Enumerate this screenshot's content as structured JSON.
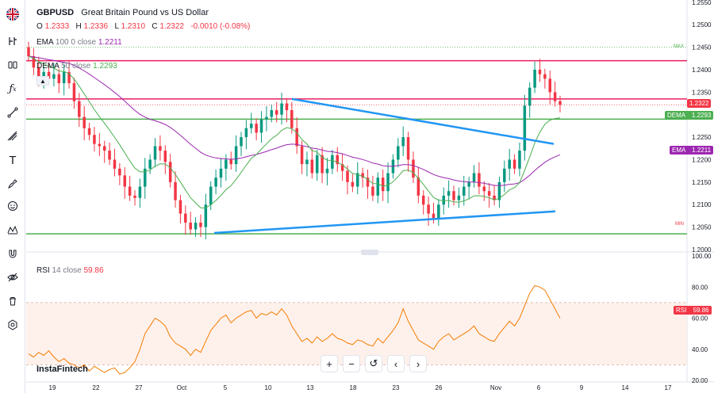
{
  "symbol": {
    "ticker": "GBPUSD",
    "name": "Great Britain Pound vs US Dollar",
    "o_label": "O",
    "o": "1.2333",
    "h_label": "H",
    "h": "1.2336",
    "l_label": "L",
    "l": "1.2310",
    "c_label": "C",
    "c": "1.2322",
    "change": "-0.0010 (-0.08%)"
  },
  "indicators": {
    "ema": {
      "name": "EMA",
      "params": "100 0 close",
      "value": "1.2211",
      "color": "#9c27b0"
    },
    "dema": {
      "name": "DEMA",
      "params": "50 close",
      "value": "1.2293",
      "color": "#4caf50"
    },
    "rsi": {
      "name": "RSI",
      "params": "14 close",
      "value": "59.86",
      "color": "#f57c00"
    }
  },
  "tags": {
    "max": "MAX",
    "min": "MIN",
    "price": "1.2322",
    "dema_label": "DEMA",
    "dema_value": "1.2293",
    "ema_label": "EMA",
    "ema_value": "1.2211",
    "rsi_label": "RSI",
    "rsi_value": "59.86"
  },
  "colors": {
    "up": "#089981",
    "down": "#f23645",
    "trend": "#2196f3",
    "resistance": "#e91e63",
    "support": "#4caf50",
    "rsi": "#f57c00"
  },
  "watermark": "InstaFintech",
  "toolbar_icons": [
    "uk-flag-icon",
    "crosshair-icon",
    "candles-icon",
    "fx-icon",
    "trendline-icon",
    "fib-icon",
    "text-icon",
    "brush-icon",
    "emoji-icon",
    "pattern-icon",
    "magnet-icon",
    "eye-off-icon",
    "trash-icon",
    "settings-icon"
  ],
  "nav_buttons": [
    "+",
    "−",
    "↺",
    "‹",
    "›"
  ],
  "chart_data": [
    {
      "type": "candlestick",
      "title": "GBPUSD",
      "ylim": [
        1.2,
        1.2555
      ],
      "y_ticks": [
        "1.2550",
        "1.2500",
        "1.2450",
        "1.2400",
        "1.2350",
        "1.2300",
        "1.2250",
        "1.2200",
        "1.2150",
        "1.2100",
        "1.2050",
        "1.2000"
      ],
      "x_ticks": [
        "19",
        "22",
        "27",
        "Oct",
        "5",
        "10",
        "13",
        "18",
        "23",
        "26",
        "Nov",
        "6",
        "9",
        "14",
        "17"
      ],
      "close_series": [
        1.243,
        1.2405,
        1.2385,
        1.2395,
        1.238,
        1.239,
        1.237,
        1.2395,
        1.237,
        1.233,
        1.2295,
        1.227,
        1.2255,
        1.2235,
        1.223,
        1.222,
        1.22,
        1.218,
        1.2165,
        1.214,
        1.212,
        1.2115,
        1.214,
        1.218,
        1.22,
        1.223,
        1.222,
        1.2195,
        1.215,
        1.211,
        1.208,
        1.206,
        1.2045,
        1.206,
        1.205,
        1.21,
        1.214,
        1.216,
        1.218,
        1.22,
        1.219,
        1.223,
        1.225,
        1.227,
        1.228,
        1.226,
        1.229,
        1.2295,
        1.231,
        1.23,
        1.2325,
        1.231,
        1.227,
        1.223,
        1.219,
        1.22,
        1.217,
        1.221,
        1.217,
        1.218,
        1.221,
        1.219,
        1.2175,
        1.215,
        1.214,
        1.217,
        1.216,
        1.214,
        1.212,
        1.216,
        1.213,
        1.217,
        1.22,
        1.223,
        1.225,
        1.22,
        1.216,
        1.212,
        1.21,
        1.208,
        1.207,
        1.21,
        1.212,
        1.213,
        1.211,
        1.212,
        1.214,
        1.215,
        1.217,
        1.214,
        1.213,
        1.212,
        1.211,
        1.215,
        1.218,
        1.22,
        1.218,
        1.222,
        1.232,
        1.236,
        1.24,
        1.239,
        1.238,
        1.235,
        1.233,
        1.2322
      ],
      "ema100": {
        "from": 1.241,
        "to": 1.2211
      },
      "dema50": {
        "from": 1.24,
        "to": 1.2293
      },
      "levels": {
        "max": 1.245,
        "resistance_top": 1.242,
        "resistance_mid": 1.2335,
        "support_dema": 1.229,
        "min": 1.2035
      },
      "trendlines": [
        {
          "from": [
            "2023-10-11",
            1.2335
          ],
          "to": [
            "2023-11-08",
            1.2235
          ]
        },
        {
          "from": [
            "2023-10-04",
            1.2037
          ],
          "to": [
            "2023-11-08",
            1.2085
          ]
        }
      ]
    },
    {
      "type": "line",
      "title": "RSI",
      "ylim": [
        20,
        100
      ],
      "y_ticks": [
        "100.00",
        "80.00",
        "60.00",
        "40.00",
        "20.00"
      ],
      "overbought": 70,
      "oversold": 30,
      "values": [
        37,
        35,
        38,
        36,
        39,
        35,
        32,
        34,
        31,
        30,
        28,
        30,
        26,
        29,
        27,
        25,
        27,
        28,
        24,
        25,
        28,
        32,
        40,
        50,
        55,
        60,
        58,
        55,
        48,
        44,
        42,
        40,
        36,
        40,
        38,
        45,
        52,
        56,
        60,
        62,
        57,
        60,
        62,
        64,
        65,
        60,
        63,
        62,
        64,
        62,
        66,
        62,
        55,
        50,
        45,
        47,
        44,
        48,
        45,
        47,
        50,
        47,
        46,
        44,
        43,
        46,
        45,
        43,
        42,
        47,
        44,
        48,
        52,
        57,
        66,
        58,
        52,
        46,
        44,
        42,
        40,
        45,
        48,
        50,
        46,
        48,
        50,
        52,
        55,
        50,
        48,
        46,
        45,
        50,
        54,
        58,
        55,
        60,
        68,
        76,
        81,
        80,
        78,
        72,
        66,
        59.86
      ]
    }
  ]
}
